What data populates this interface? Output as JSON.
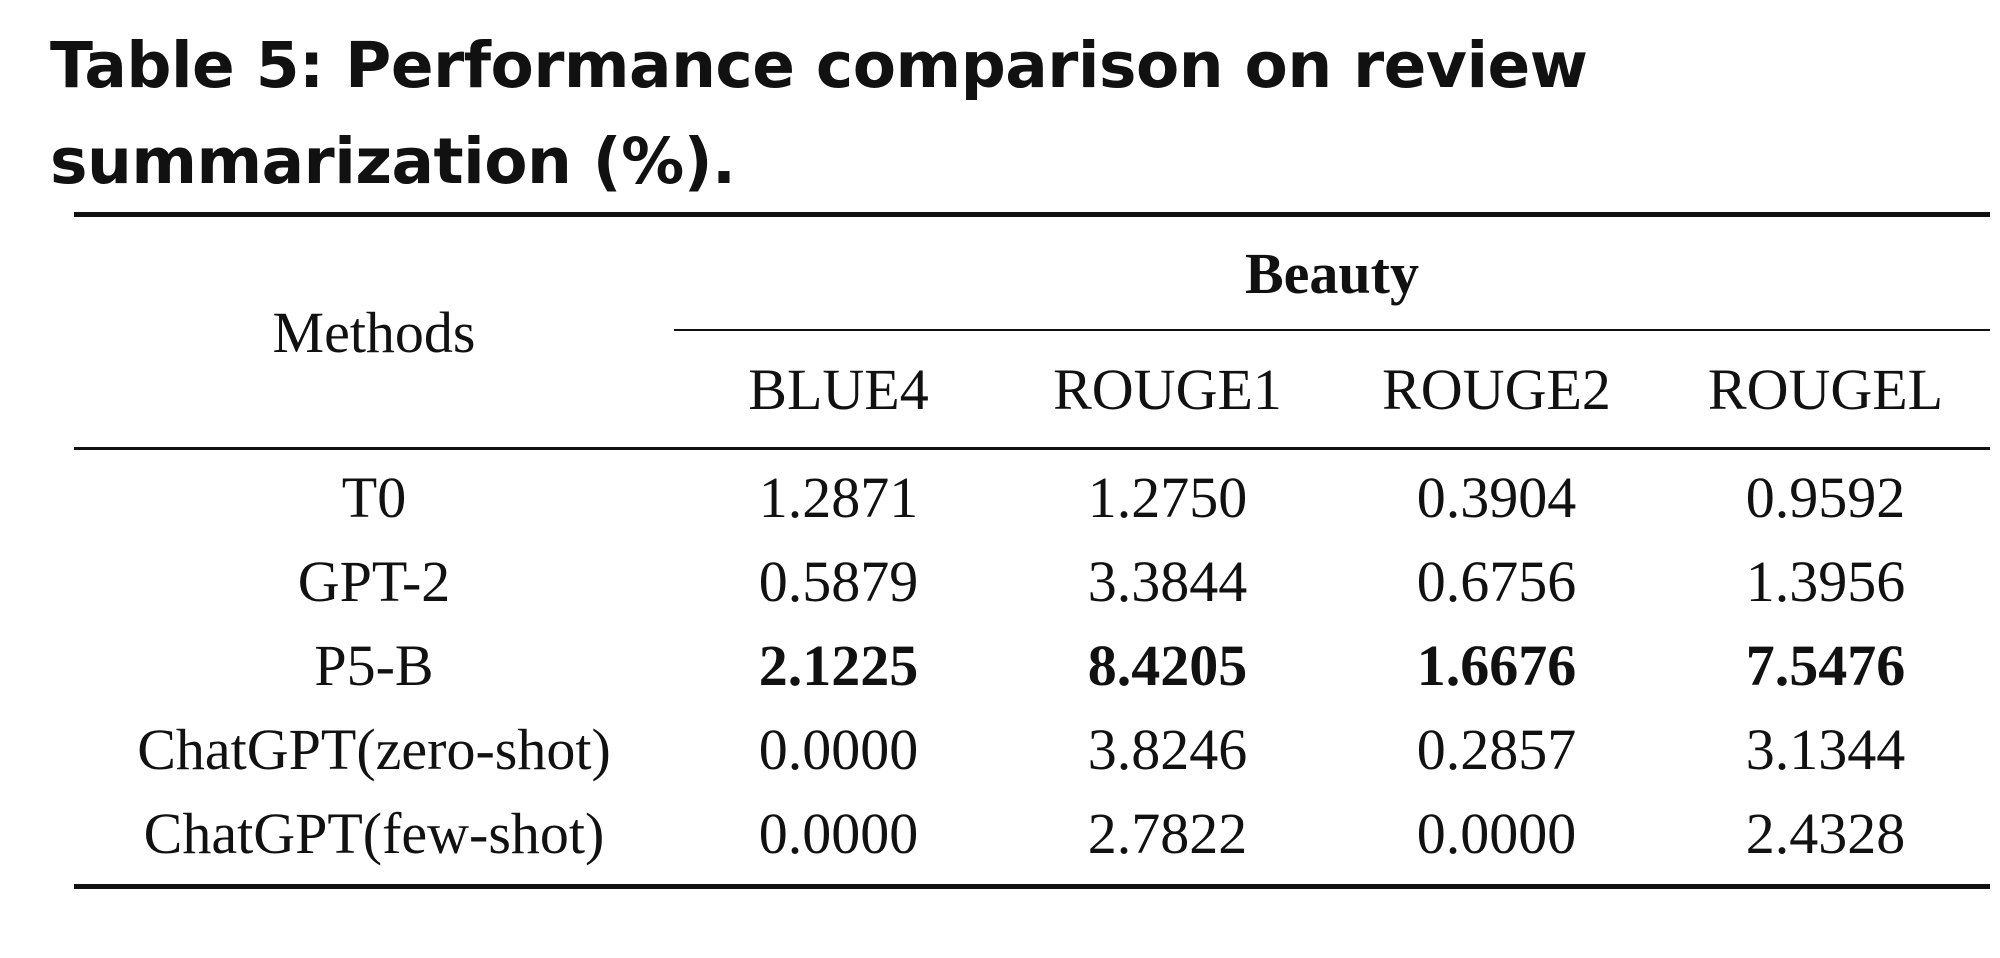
{
  "caption": {
    "line1": "Table 5: Performance comparison on review summarization",
    "line2": "(%)."
  },
  "table": {
    "methods_header": "Methods",
    "group_header": "Beauty",
    "metrics": [
      "BLUE4",
      "ROUGE1",
      "ROUGE2",
      "ROUGEL"
    ],
    "rows": [
      {
        "method": "T0",
        "values": [
          "1.2871",
          "1.2750",
          "0.3904",
          "0.9592"
        ],
        "bold": false
      },
      {
        "method": "GPT-2",
        "values": [
          "0.5879",
          "3.3844",
          "0.6756",
          "1.3956"
        ],
        "bold": false
      },
      {
        "method": "P5-B",
        "values": [
          "2.1225",
          "8.4205",
          "1.6676",
          "7.5476"
        ],
        "bold": true
      },
      {
        "method": "ChatGPT(zero-shot)",
        "values": [
          "0.0000",
          "3.8246",
          "0.2857",
          "3.1344"
        ],
        "bold": false
      },
      {
        "method": "ChatGPT(few-shot)",
        "values": [
          "0.0000",
          "2.7822",
          "0.0000",
          "2.4328"
        ],
        "bold": false
      }
    ]
  }
}
